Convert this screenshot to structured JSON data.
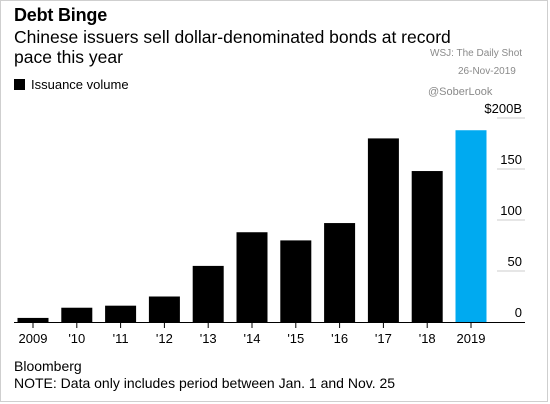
{
  "header": {
    "title": "Debt Binge",
    "subtitle": "Chinese issuers sell dollar-denominated bonds at record pace this year"
  },
  "watermarks": {
    "source_line": "WSJ: The Daily Shot",
    "date_line": "26-Nov-2019",
    "handle": "@SoberLook"
  },
  "footer": {
    "source": "Bloomberg",
    "note": "NOTE: Data only includes period between Jan. 1 and Nov. 25"
  },
  "colors": {
    "bar": "#000000",
    "highlight": "#00aaf0",
    "gridline": "#cccccc"
  },
  "chart_data": {
    "type": "bar",
    "title": "Debt Binge",
    "subtitle": "Chinese issuers sell dollar-denominated bonds at record pace this year",
    "xlabel": "",
    "ylabel": "",
    "categories": [
      "2009",
      "'10",
      "'11",
      "'12",
      "'13",
      "'14",
      "'15",
      "'16",
      "'17",
      "'18",
      "2019"
    ],
    "series": [
      {
        "name": "Issuance volume",
        "values": [
          4,
          14,
          16,
          25,
          55,
          88,
          80,
          97,
          180,
          148,
          188
        ]
      }
    ],
    "highlight_index": 10,
    "ylim": [
      0,
      200
    ],
    "yticks": [
      0,
      50,
      100,
      150,
      200
    ],
    "ytick_labels": [
      "0",
      "50",
      "100",
      "150",
      "$200B"
    ],
    "grid": true,
    "legend": "top-left",
    "y_axis_side": "right"
  }
}
